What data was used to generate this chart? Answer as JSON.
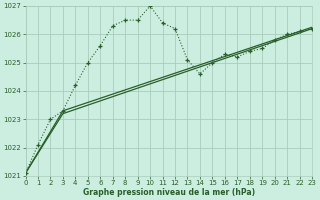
{
  "title": "Graphe pression niveau de la mer (hPa)",
  "xlim": [
    0,
    23
  ],
  "ylim": [
    1021,
    1027
  ],
  "yticks": [
    1021,
    1022,
    1023,
    1024,
    1025,
    1026,
    1027
  ],
  "xticks": [
    0,
    1,
    2,
    3,
    4,
    5,
    6,
    7,
    8,
    9,
    10,
    11,
    12,
    13,
    14,
    15,
    16,
    17,
    18,
    19,
    20,
    21,
    22,
    23
  ],
  "bg_color": "#cceee0",
  "grid_color": "#aaccbb",
  "line_color": "#2a5e2a",
  "series1": [
    [
      0,
      1021.1
    ],
    [
      1,
      1022.1
    ],
    [
      2,
      1023.0
    ],
    [
      3,
      1023.3
    ],
    [
      4,
      1024.2
    ],
    [
      5,
      1025.0
    ],
    [
      6,
      1025.6
    ],
    [
      7,
      1026.3
    ],
    [
      8,
      1026.5
    ],
    [
      9,
      1026.5
    ],
    [
      10,
      1027.0
    ],
    [
      11,
      1026.4
    ],
    [
      12,
      1026.2
    ],
    [
      13,
      1025.1
    ],
    [
      14,
      1024.6
    ],
    [
      15,
      1025.0
    ],
    [
      16,
      1025.3
    ],
    [
      17,
      1025.2
    ],
    [
      18,
      1025.4
    ],
    [
      19,
      1025.5
    ],
    [
      20,
      1025.8
    ],
    [
      21,
      1026.0
    ],
    [
      22,
      1026.1
    ],
    [
      23,
      1026.2
    ]
  ],
  "series2": [
    [
      0,
      1021.1
    ],
    [
      3,
      1023.2
    ],
    [
      23,
      1026.2
    ]
  ],
  "series3": [
    [
      0,
      1021.1
    ],
    [
      3,
      1023.3
    ],
    [
      23,
      1026.25
    ]
  ]
}
